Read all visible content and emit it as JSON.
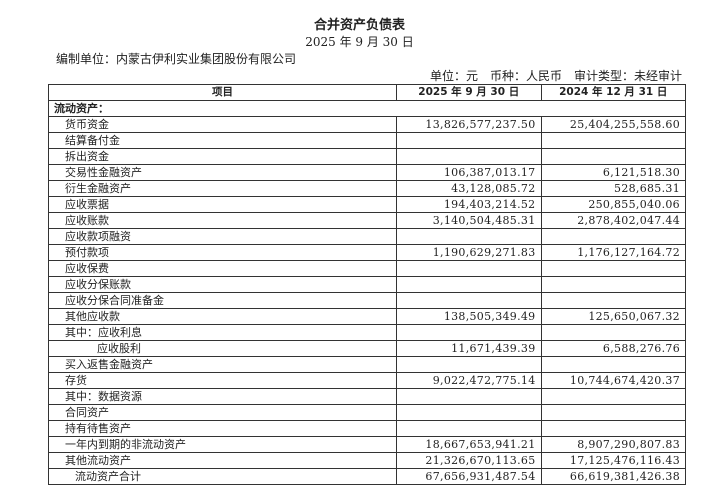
{
  "title": "合并资产负债表",
  "date": "2025 年 9 月 30 日",
  "org": "编制单位：内蒙古伊利实业集团股份有限公司",
  "unit": "单位：元　币种：人民币　审计类型：未经审计",
  "columns": [
    "项目",
    "2025 年 9 月 30 日",
    "2024 年 12 月 31 日"
  ],
  "section": "流动资产：",
  "rows": [
    {
      "item": "货币资金",
      "v2025": "13,826,577,237.50",
      "v2024": "25,404,255,558.60"
    },
    {
      "item": "结算备付金",
      "v2025": "",
      "v2024": ""
    },
    {
      "item": "拆出资金",
      "v2025": "",
      "v2024": ""
    },
    {
      "item": "交易性金融资产",
      "v2025": "106,387,013.17",
      "v2024": "6,121,518.30"
    },
    {
      "item": "衍生金融资产",
      "v2025": "43,128,085.72",
      "v2024": "528,685.31"
    },
    {
      "item": "应收票据",
      "v2025": "194,403,214.52",
      "v2024": "250,855,040.06"
    },
    {
      "item": "应收账款",
      "v2025": "3,140,504,485.31",
      "v2024": "2,878,402,047.44"
    },
    {
      "item": "应收款项融资",
      "v2025": "",
      "v2024": ""
    },
    {
      "item": "预付款项",
      "v2025": "1,190,629,271.83",
      "v2024": "1,176,127,164.72"
    },
    {
      "item": "应收保费",
      "v2025": "",
      "v2024": ""
    },
    {
      "item": "应收分保账款",
      "v2025": "",
      "v2024": ""
    },
    {
      "item": "应收分保合同准备金",
      "v2025": "",
      "v2024": ""
    },
    {
      "item": "其他应收款",
      "v2025": "138,505,349.49",
      "v2024": "125,650,067.32"
    },
    {
      "item": "其中：应收利息",
      "v2025": "",
      "v2024": ""
    },
    {
      "item": "应收股利",
      "v2025": "11,671,439.39",
      "v2024": "6,588,276.76"
    },
    {
      "item": "买入返售金融资产",
      "v2025": "",
      "v2024": ""
    },
    {
      "item": "存货",
      "v2025": "9,022,472,775.14",
      "v2024": "10,744,674,420.37"
    },
    {
      "item": "其中：数据资源",
      "v2025": "",
      "v2024": ""
    },
    {
      "item": "合同资产",
      "v2025": "",
      "v2024": ""
    },
    {
      "item": "持有待售资产",
      "v2025": "",
      "v2024": ""
    },
    {
      "item": "一年内到期的非流动资产",
      "v2025": "18,667,653,941.21",
      "v2024": "8,907,290,807.83"
    },
    {
      "item": "其他流动资产",
      "v2025": "21,326,670,113.65",
      "v2024": "17,125,476,116.43"
    },
    {
      "item": "流动资产合计",
      "v2025": "67,656,931,487.54",
      "v2024": "66,619,381,426.38"
    }
  ]
}
